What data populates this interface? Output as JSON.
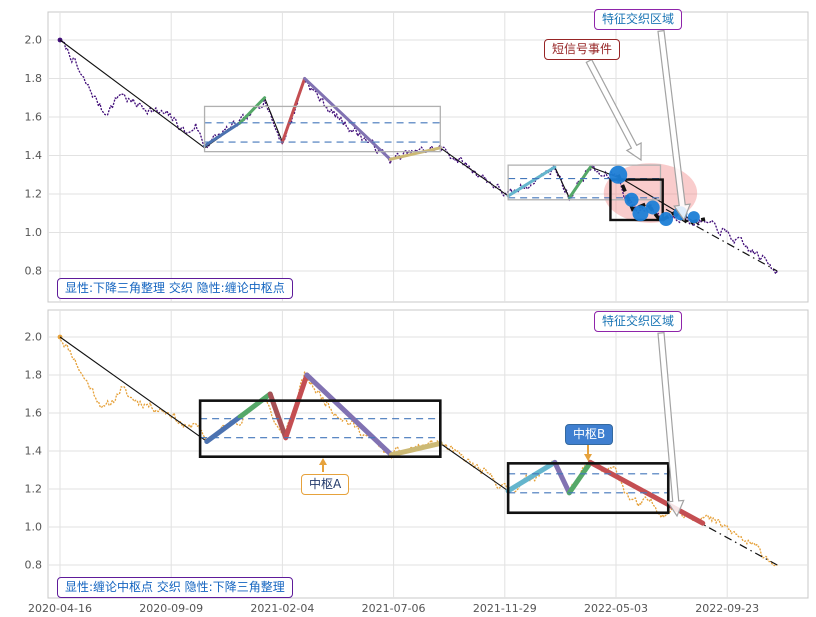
{
  "figure": {
    "background": "#ffffff"
  },
  "annotations": {
    "feature_zone_top": "特征交织区域",
    "feature_zone_bottom": "特征交织区域",
    "short_signal": "短信号事件",
    "pivot_a_label": "中枢A",
    "pivot_b_label": "中枢B",
    "top_caption": "显性:下降三角整理 交织 隐性:缠论中枢点",
    "bottom_caption": "显性:缠论中枢点 交织 隐性:下降三角整理"
  },
  "axis": {
    "x_tick_labels": [
      "2020-04-16",
      "2020-09-09",
      "2021-02-04",
      "2021-07-06",
      "2021-11-29",
      "2022-05-03",
      "2022-09-23"
    ],
    "y_ticks": [
      0.8,
      1.0,
      1.2,
      1.4,
      1.6,
      1.8,
      2.0
    ]
  },
  "colors": {
    "grid": "#e2e2e2",
    "panel_border": "#c8c8c8",
    "trend": "#111111",
    "dashed_level": "#4477bb",
    "signal_point": "#1c7ed6",
    "highlight": "#f08080",
    "arrow_outline": "#a3a3a3",
    "small_arrow": "#e6a23c"
  },
  "chart_data": [
    {
      "type": "line",
      "panel": "top",
      "title": "",
      "xlabel": "",
      "ylabel": "",
      "x_unit": "x tick index: 0=2020-04-16 ... 6=2022-09-23",
      "ylim": [
        0.64,
        2.15
      ],
      "yticks": [
        0.8,
        1.0,
        1.2,
        1.4,
        1.6,
        1.8,
        2.0
      ],
      "x_tick_labels": [
        "2020-04-16",
        "2020-09-09",
        "2021-02-04",
        "2021-07-06",
        "2021-11-29",
        "2022-05-03",
        "2022-09-23"
      ],
      "price_series_color": "#43107a",
      "price_style": "dotted",
      "noise_amp": 0.02,
      "seed": 7,
      "price_anchors": [
        [
          0,
          2.0
        ],
        [
          0.05,
          1.96
        ],
        [
          0.12,
          1.9
        ],
        [
          0.2,
          1.8
        ],
        [
          0.28,
          1.73
        ],
        [
          0.4,
          1.62
        ],
        [
          0.47,
          1.66
        ],
        [
          0.55,
          1.73
        ],
        [
          0.63,
          1.68
        ],
        [
          0.72,
          1.66
        ],
        [
          0.85,
          1.63
        ],
        [
          1.0,
          1.6
        ],
        [
          1.08,
          1.55
        ],
        [
          1.15,
          1.51
        ],
        [
          1.22,
          1.56
        ],
        [
          1.3,
          1.45
        ],
        [
          1.42,
          1.5
        ],
        [
          1.55,
          1.55
        ],
        [
          1.62,
          1.57
        ],
        [
          1.72,
          1.61
        ],
        [
          1.84,
          1.7
        ],
        [
          1.93,
          1.55
        ],
        [
          2.0,
          1.47
        ],
        [
          2.08,
          1.58
        ],
        [
          2.2,
          1.8
        ],
        [
          2.3,
          1.72
        ],
        [
          2.45,
          1.62
        ],
        [
          2.6,
          1.55
        ],
        [
          2.78,
          1.47
        ],
        [
          2.97,
          1.38
        ],
        [
          3.15,
          1.41
        ],
        [
          3.3,
          1.43
        ],
        [
          3.42,
          1.44
        ],
        [
          3.55,
          1.39
        ],
        [
          3.7,
          1.33
        ],
        [
          3.85,
          1.27
        ],
        [
          4.03,
          1.19
        ],
        [
          4.18,
          1.24
        ],
        [
          4.32,
          1.29
        ],
        [
          4.45,
          1.34
        ],
        [
          4.52,
          1.25
        ],
        [
          4.58,
          1.18
        ],
        [
          4.68,
          1.27
        ],
        [
          4.77,
          1.34
        ],
        [
          4.88,
          1.29
        ],
        [
          5.0,
          1.3
        ],
        [
          5.1,
          1.17
        ],
        [
          5.2,
          1.11
        ],
        [
          5.3,
          1.14
        ],
        [
          5.42,
          1.07
        ],
        [
          5.52,
          1.1
        ],
        [
          5.65,
          1.06
        ],
        [
          5.8,
          1.05
        ],
        [
          5.95,
          1.01
        ],
        [
          6.1,
          0.95
        ],
        [
          6.28,
          0.88
        ],
        [
          6.45,
          0.8
        ]
      ],
      "trend_solid": [
        [
          0,
          2.0
        ],
        [
          1.3,
          1.44
        ],
        [
          1.62,
          1.57
        ],
        [
          1.84,
          1.7
        ],
        [
          2.0,
          1.47
        ],
        [
          2.2,
          1.8
        ],
        [
          2.97,
          1.38
        ],
        [
          3.42,
          1.44
        ],
        [
          4.03,
          1.19
        ],
        [
          4.45,
          1.34
        ],
        [
          4.58,
          1.18
        ],
        [
          4.77,
          1.34
        ],
        [
          5.05,
          1.28
        ],
        [
          5.75,
          1.04
        ]
      ],
      "trend_dashdot": [
        [
          5.45,
          1.12
        ],
        [
          6.45,
          0.8
        ]
      ],
      "segments": [
        {
          "color": "#4C72B0",
          "w": 3,
          "pts": [
            [
              1.3,
              1.45
            ],
            [
              1.62,
              1.57
            ]
          ]
        },
        {
          "color": "#55A868",
          "w": 3,
          "pts": [
            [
              1.62,
              1.57
            ],
            [
              1.84,
              1.7
            ]
          ]
        },
        {
          "color": "#C44E52",
          "w": 3,
          "pts": [
            [
              2.0,
              1.47
            ],
            [
              2.2,
              1.8
            ]
          ]
        },
        {
          "color": "#8172B2",
          "w": 3,
          "pts": [
            [
              2.2,
              1.8
            ],
            [
              2.97,
              1.38
            ]
          ]
        },
        {
          "color": "#CCB974",
          "w": 3,
          "pts": [
            [
              2.97,
              1.38
            ],
            [
              3.42,
              1.44
            ]
          ]
        },
        {
          "color": "#64B5CD",
          "w": 3,
          "pts": [
            [
              4.03,
              1.19
            ],
            [
              4.45,
              1.34
            ]
          ]
        },
        {
          "color": "#55A868",
          "w": 3,
          "pts": [
            [
              4.58,
              1.18
            ],
            [
              4.77,
              1.34
            ]
          ]
        }
      ],
      "signal_zigzag": {
        "color": "#111111",
        "w": 3.5,
        "dash": "7 4",
        "pts": [
          [
            5.02,
            1.3
          ],
          [
            5.15,
            1.12
          ],
          [
            5.28,
            1.15
          ],
          [
            5.4,
            1.06
          ],
          [
            5.52,
            1.1
          ],
          [
            5.65,
            1.05
          ],
          [
            5.8,
            1.07
          ]
        ]
      },
      "signal_points": {
        "pts": [
          [
            5.02,
            1.3,
            9
          ],
          [
            5.14,
            1.17,
            7
          ],
          [
            5.22,
            1.1,
            8
          ],
          [
            5.33,
            1.13,
            7
          ],
          [
            5.45,
            1.07,
            7
          ],
          [
            5.58,
            1.1,
            7
          ],
          [
            5.7,
            1.08,
            6
          ]
        ]
      },
      "boxes": [
        {
          "u0": 1.3,
          "u1": 3.42,
          "p0": 1.42,
          "p1": 1.655,
          "stroke": "#b0b0b0",
          "w": 1.3
        },
        {
          "u0": 4.03,
          "u1": 5.4,
          "p0": 1.17,
          "p1": 1.35,
          "stroke": "#b0b0b0",
          "w": 1.3
        },
        {
          "u0": 4.95,
          "u1": 5.42,
          "p0": 1.065,
          "p1": 1.275,
          "stroke": "#111111",
          "w": 2.4
        }
      ],
      "dashed_levels": [
        {
          "p": 1.57,
          "u0": 1.3,
          "u1": 3.42
        },
        {
          "p": 1.47,
          "u0": 1.3,
          "u1": 3.42
        },
        {
          "p": 1.28,
          "u0": 4.03,
          "u1": 5.4
        },
        {
          "p": 1.18,
          "u0": 4.03,
          "u1": 5.4
        }
      ],
      "highlight_ellipse": {
        "u": 5.31,
        "p": 1.205,
        "ru": 0.42,
        "rp": 0.155,
        "opacity": 0.4
      }
    },
    {
      "type": "line",
      "panel": "bottom",
      "title": "",
      "xlabel": "",
      "ylabel": "",
      "x_unit": "x tick index: 0=2020-04-16 ... 6=2022-09-23",
      "ylim": [
        0.63,
        2.15
      ],
      "yticks": [
        0.8,
        1.0,
        1.2,
        1.4,
        1.6,
        1.8,
        2.0
      ],
      "x_tick_labels": [
        "2020-04-16",
        "2020-09-09",
        "2021-02-04",
        "2021-07-06",
        "2021-11-29",
        "2022-05-03",
        "2022-09-23"
      ],
      "price_series_color": "#e6a23c",
      "price_style": "dotted",
      "noise_amp": 0.02,
      "seed": 11,
      "price_anchors": [
        [
          0,
          2.0
        ],
        [
          0.05,
          1.96
        ],
        [
          0.12,
          1.9
        ],
        [
          0.2,
          1.8
        ],
        [
          0.28,
          1.73
        ],
        [
          0.4,
          1.62
        ],
        [
          0.47,
          1.66
        ],
        [
          0.55,
          1.73
        ],
        [
          0.63,
          1.68
        ],
        [
          0.72,
          1.66
        ],
        [
          0.85,
          1.63
        ],
        [
          1.0,
          1.6
        ],
        [
          1.08,
          1.55
        ],
        [
          1.15,
          1.51
        ],
        [
          1.22,
          1.56
        ],
        [
          1.3,
          1.45
        ],
        [
          1.42,
          1.5
        ],
        [
          1.55,
          1.55
        ],
        [
          1.62,
          1.57
        ],
        [
          1.72,
          1.61
        ],
        [
          1.84,
          1.7
        ],
        [
          1.93,
          1.55
        ],
        [
          2.0,
          1.47
        ],
        [
          2.08,
          1.58
        ],
        [
          2.2,
          1.8
        ],
        [
          2.3,
          1.72
        ],
        [
          2.45,
          1.62
        ],
        [
          2.6,
          1.55
        ],
        [
          2.78,
          1.47
        ],
        [
          2.97,
          1.38
        ],
        [
          3.15,
          1.41
        ],
        [
          3.3,
          1.43
        ],
        [
          3.42,
          1.44
        ],
        [
          3.55,
          1.39
        ],
        [
          3.7,
          1.33
        ],
        [
          3.85,
          1.27
        ],
        [
          4.03,
          1.19
        ],
        [
          4.18,
          1.24
        ],
        [
          4.32,
          1.29
        ],
        [
          4.45,
          1.34
        ],
        [
          4.52,
          1.25
        ],
        [
          4.58,
          1.18
        ],
        [
          4.68,
          1.27
        ],
        [
          4.77,
          1.34
        ],
        [
          4.88,
          1.29
        ],
        [
          5.0,
          1.3
        ],
        [
          5.1,
          1.17
        ],
        [
          5.2,
          1.11
        ],
        [
          5.3,
          1.14
        ],
        [
          5.42,
          1.07
        ],
        [
          5.52,
          1.1
        ],
        [
          5.65,
          1.06
        ],
        [
          5.8,
          1.05
        ],
        [
          5.95,
          1.01
        ],
        [
          6.1,
          0.95
        ],
        [
          6.28,
          0.88
        ],
        [
          6.45,
          0.8
        ]
      ],
      "trend_solid": [
        [
          0,
          2.0
        ],
        [
          1.32,
          1.45
        ],
        [
          1.62,
          1.58
        ],
        [
          1.89,
          1.7
        ],
        [
          2.03,
          1.47
        ],
        [
          2.22,
          1.8
        ],
        [
          2.98,
          1.38
        ],
        [
          3.42,
          1.44
        ],
        [
          4.03,
          1.19
        ],
        [
          4.45,
          1.34
        ],
        [
          4.58,
          1.18
        ],
        [
          4.77,
          1.34
        ],
        [
          5.78,
          1.02
        ]
      ],
      "trend_dashdot": [
        [
          5.7,
          1.04
        ],
        [
          6.45,
          0.8
        ]
      ],
      "segments": [
        {
          "color": "#4C72B0",
          "w": 5,
          "pts": [
            [
              1.32,
              1.45
            ],
            [
              1.62,
              1.58
            ]
          ]
        },
        {
          "color": "#55A868",
          "w": 5,
          "pts": [
            [
              1.62,
              1.58
            ],
            [
              1.89,
              1.7
            ]
          ]
        },
        {
          "color": "#a65055",
          "w": 5,
          "pts": [
            [
              1.89,
              1.7
            ],
            [
              2.03,
              1.47
            ]
          ]
        },
        {
          "color": "#C44E52",
          "w": 5,
          "pts": [
            [
              2.03,
              1.47
            ],
            [
              2.22,
              1.8
            ]
          ]
        },
        {
          "color": "#8172B2",
          "w": 5,
          "pts": [
            [
              2.22,
              1.8
            ],
            [
              2.98,
              1.38
            ]
          ]
        },
        {
          "color": "#CCB974",
          "w": 5,
          "pts": [
            [
              2.98,
              1.38
            ],
            [
              3.42,
              1.44
            ]
          ]
        },
        {
          "color": "#64B5CD",
          "w": 5,
          "pts": [
            [
              4.03,
              1.19
            ],
            [
              4.45,
              1.34
            ]
          ]
        },
        {
          "color": "#8172B2",
          "w": 5,
          "pts": [
            [
              4.45,
              1.34
            ],
            [
              4.58,
              1.18
            ]
          ]
        },
        {
          "color": "#55A868",
          "w": 5,
          "pts": [
            [
              4.58,
              1.18
            ],
            [
              4.77,
              1.34
            ]
          ]
        },
        {
          "color": "#C44E52",
          "w": 5,
          "pts": [
            [
              4.77,
              1.34
            ],
            [
              5.78,
              1.02
            ]
          ]
        }
      ],
      "boxes": [
        {
          "u0": 1.26,
          "u1": 3.42,
          "p0": 1.37,
          "p1": 1.665,
          "stroke": "#111111",
          "w": 2.6
        },
        {
          "u0": 4.03,
          "u1": 5.47,
          "p0": 1.075,
          "p1": 1.335,
          "stroke": "#111111",
          "w": 2.6
        }
      ],
      "dashed_levels": [
        {
          "p": 1.57,
          "u0": 1.26,
          "u1": 3.42
        },
        {
          "p": 1.47,
          "u0": 1.26,
          "u1": 3.42
        },
        {
          "p": 1.28,
          "u0": 4.03,
          "u1": 5.47
        },
        {
          "p": 1.18,
          "u0": 4.03,
          "u1": 5.47
        }
      ]
    }
  ]
}
